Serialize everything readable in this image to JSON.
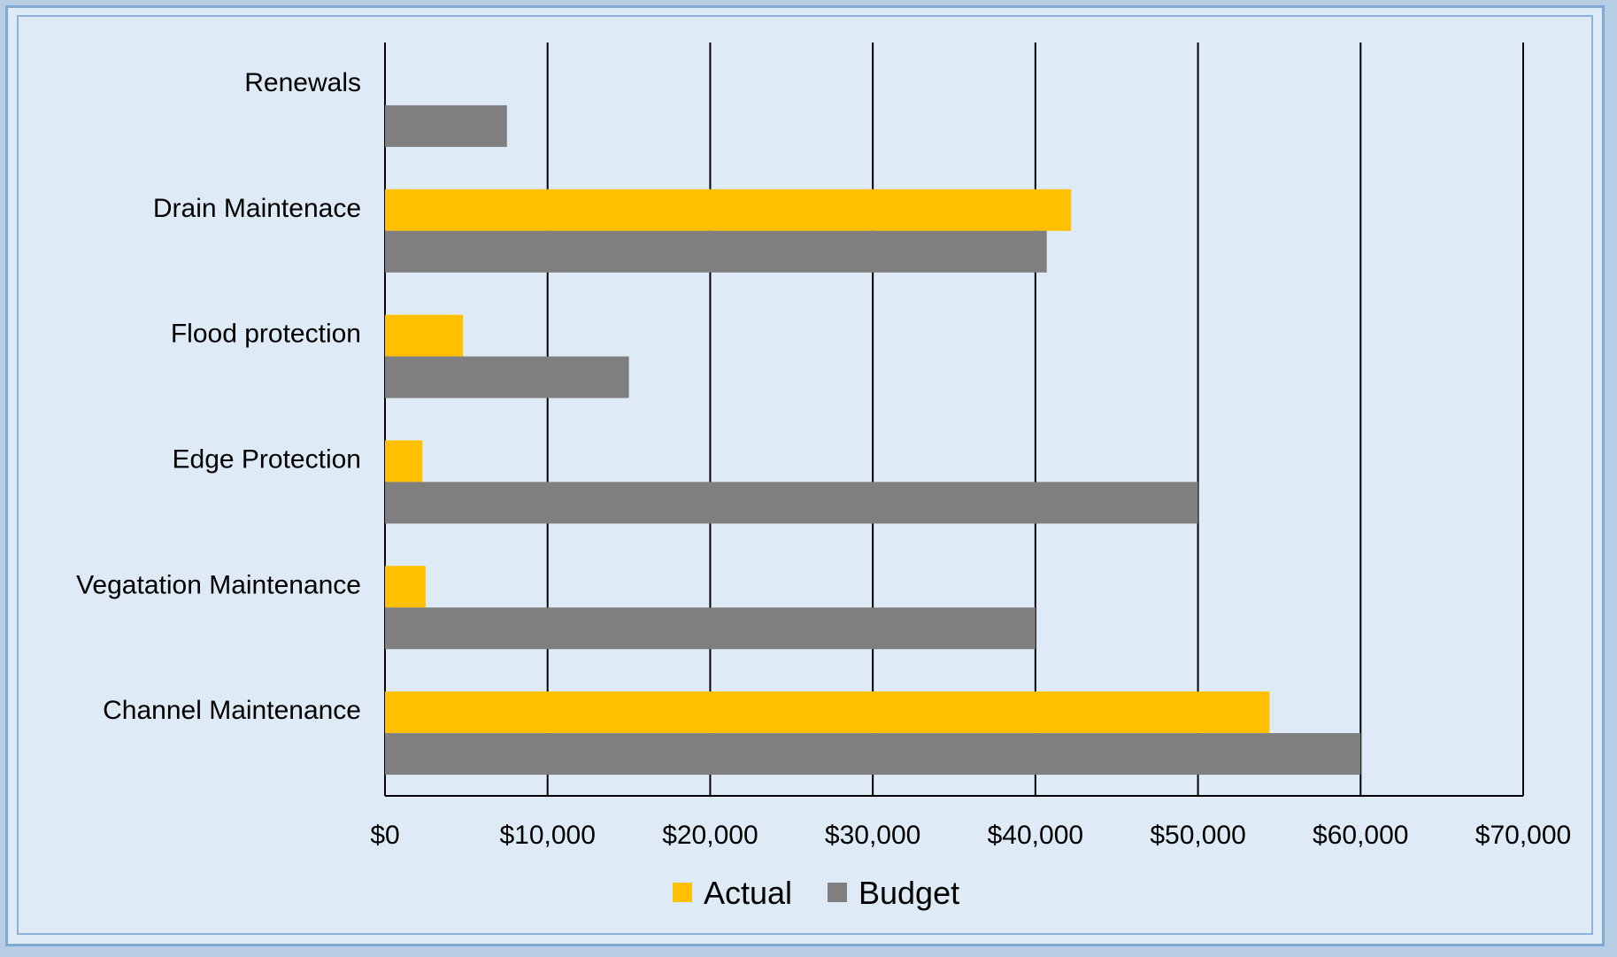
{
  "chart_data": {
    "type": "bar",
    "orientation": "horizontal",
    "title": "",
    "xlabel": "",
    "ylabel": "",
    "categories": [
      "Renewals",
      "Drain Maintenace",
      "Flood protection",
      "Edge Protection",
      "Vegatation Maintenance",
      "Channel Maintenance"
    ],
    "series": [
      {
        "name": "Actual",
        "color": "#ffc000",
        "values": [
          0,
          42200,
          4800,
          2300,
          2500,
          54400
        ]
      },
      {
        "name": "Budget",
        "color": "#7f7f7f",
        "values": [
          7500,
          40700,
          15000,
          50000,
          40000,
          60000
        ]
      }
    ],
    "xlim": [
      0,
      70000
    ],
    "ticks": [
      0,
      10000,
      20000,
      30000,
      40000,
      50000,
      60000,
      70000
    ],
    "tick_labels": [
      "$0",
      "$10,000",
      "$20,000",
      "$30,000",
      "$40,000",
      "$50,000",
      "$60,000",
      "$70,000"
    ],
    "grid": true,
    "legend": "bottom"
  }
}
